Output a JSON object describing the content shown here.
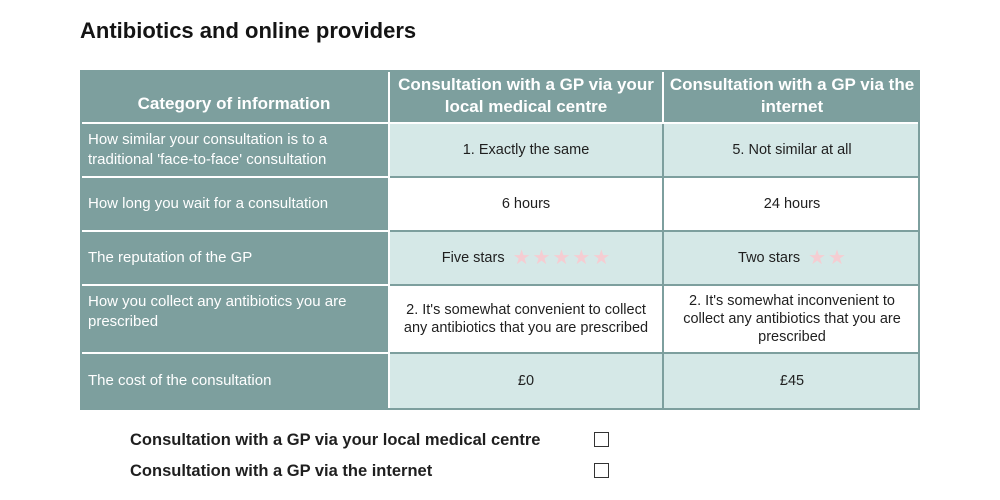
{
  "page": {
    "title": "Antibiotics and online providers"
  },
  "table": {
    "headers": [
      "Category of information",
      "Consultation with a GP via your local medical centre",
      "Consultation with a GP via the internet"
    ],
    "rows": [
      {
        "label": "How similar your consultation is to a traditional 'face-to-face' consultation",
        "col1": "1. Exactly the same",
        "col2": "5. Not similar at all"
      },
      {
        "label": "How long you wait for a consultation",
        "col1": "6 hours",
        "col2": "24 hours"
      },
      {
        "label": "The reputation of the GP",
        "col1": "Five stars",
        "col1_rating": 5,
        "col2": "Two stars",
        "col2_rating": 2
      },
      {
        "label": "How you collect any antibiotics you are prescribed",
        "col1": "2. It's somewhat convenient to collect any antibiotics that you are prescribed",
        "col2": "2. It's somewhat inconvenient to collect any antibiotics that you are prescribed"
      },
      {
        "label": "The cost of the consultation",
        "col1": "£0",
        "col2": "£45"
      }
    ]
  },
  "choices": [
    {
      "label": "Consultation with a  GP via your local medical centre",
      "checked": false
    },
    {
      "label": "Consultation with a  GP via the internet",
      "checked": false
    }
  ],
  "colors": {
    "header_bg": "#7d9f9e",
    "shaded_cell_bg": "#d5e8e7",
    "star_color": "#f5cdd2"
  },
  "icons": {
    "rating": "star-icon",
    "option": "checkbox-icon"
  }
}
